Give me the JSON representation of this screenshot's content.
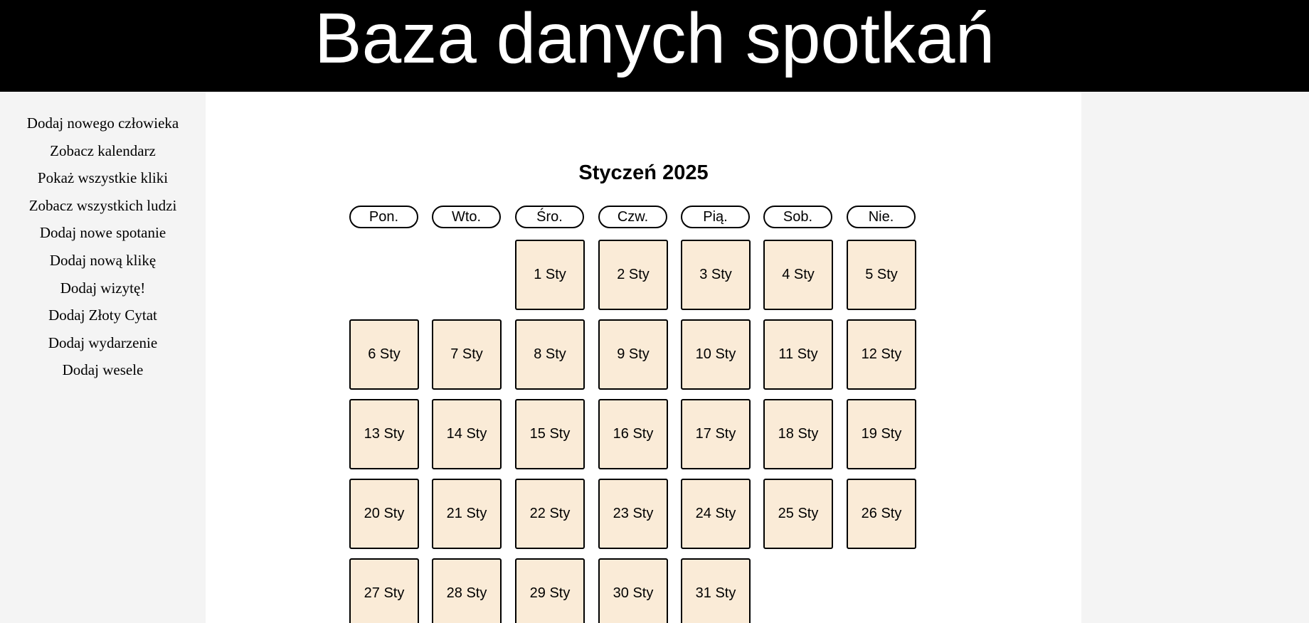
{
  "header": {
    "title": "Baza danych spotkań"
  },
  "sidebar": {
    "items": [
      {
        "label": "Dodaj nowego człowieka"
      },
      {
        "label": "Zobacz kalendarz"
      },
      {
        "label": "Pokaż wszystkie kliki"
      },
      {
        "label": "Zobacz wszystkich ludzi"
      },
      {
        "label": "Dodaj nowe spotanie"
      },
      {
        "label": "Dodaj nową klikę"
      },
      {
        "label": "Dodaj wizytę!"
      },
      {
        "label": "Dodaj Złoty Cytat"
      },
      {
        "label": "Dodaj wydarzenie"
      },
      {
        "label": "Dodaj wesele"
      }
    ]
  },
  "calendar": {
    "month_title": "Styczeń 2025",
    "weekdays": [
      "Pon.",
      "Wto.",
      "Śro.",
      "Czw.",
      "Pią.",
      "Sob.",
      "Nie."
    ],
    "first_weekday_index": 2,
    "days": [
      "1 Sty",
      "2 Sty",
      "3 Sty",
      "4 Sty",
      "5 Sty",
      "6 Sty",
      "7 Sty",
      "8 Sty",
      "9 Sty",
      "10 Sty",
      "11 Sty",
      "12 Sty",
      "13 Sty",
      "14 Sty",
      "15 Sty",
      "16 Sty",
      "17 Sty",
      "18 Sty",
      "19 Sty",
      "20 Sty",
      "21 Sty",
      "22 Sty",
      "23 Sty",
      "24 Sty",
      "25 Sty",
      "26 Sty",
      "27 Sty",
      "28 Sty",
      "29 Sty",
      "30 Sty",
      "31 Sty"
    ],
    "colors": {
      "day_background": "#faebd7",
      "border": "#000000"
    }
  }
}
